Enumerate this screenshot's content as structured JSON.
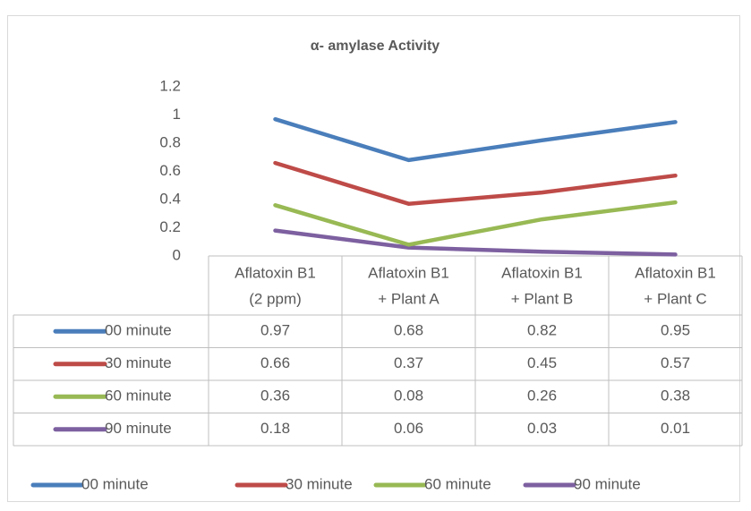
{
  "chart_data": {
    "type": "line",
    "title": "α- amylase Activity",
    "categories": [
      [
        "Aflatoxin B1",
        "(2 ppm)"
      ],
      [
        "Aflatoxin B1",
        "+ Plant A"
      ],
      [
        "Aflatoxin B1",
        "+ Plant B"
      ],
      [
        "Aflatoxin B1",
        "+ Plant C"
      ]
    ],
    "y_ticks": [
      "0",
      "0.2",
      "0.4",
      "0.6",
      "0.8",
      "1",
      "1.2"
    ],
    "ylim": [
      0,
      1.2
    ],
    "grid": false,
    "legend_position": "bottom",
    "data_table": true,
    "series": [
      {
        "name": "00 minute",
        "color": "#4a7ebb",
        "values": [
          0.97,
          0.68,
          0.82,
          0.95
        ],
        "labels": [
          "0.97",
          "0.68",
          "0.82",
          "0.95"
        ]
      },
      {
        "name": "30 minute",
        "color": "#be4b48",
        "values": [
          0.66,
          0.37,
          0.45,
          0.57
        ],
        "labels": [
          "0.66",
          "0.37",
          "0.45",
          "0.57"
        ]
      },
      {
        "name": "60 minute",
        "color": "#98b954",
        "values": [
          0.36,
          0.08,
          0.26,
          0.38
        ],
        "labels": [
          "0.36",
          "0.08",
          "0.26",
          "0.38"
        ]
      },
      {
        "name": "90 minute",
        "color": "#7d60a0",
        "values": [
          0.18,
          0.06,
          0.03,
          0.01
        ],
        "labels": [
          "0.18",
          "0.06",
          "0.03",
          "0.01"
        ]
      }
    ]
  }
}
